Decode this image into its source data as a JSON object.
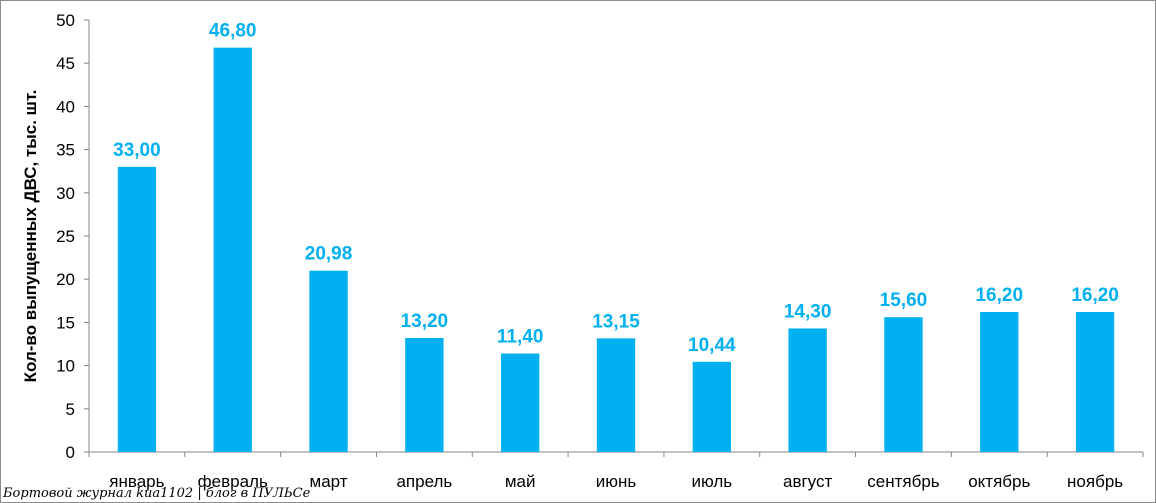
{
  "chart_data": {
    "type": "bar",
    "title": "",
    "xlabel": "",
    "ylabel": "Кол-во выпущенных ДВС, тыс. шт.",
    "ylim": [
      0,
      50
    ],
    "yticks": [
      0,
      5,
      10,
      15,
      20,
      25,
      30,
      35,
      40,
      45,
      50
    ],
    "grid": false,
    "categories": [
      "январь",
      "февраль",
      "март",
      "апрель",
      "май",
      "июнь",
      "июль",
      "август",
      "сентябрь",
      "октябрь",
      "ноябрь"
    ],
    "values": [
      33.0,
      46.8,
      20.98,
      13.2,
      11.4,
      13.15,
      10.44,
      14.3,
      15.6,
      16.2,
      16.2
    ],
    "data_labels": [
      "33,00",
      "46,80",
      "20,98",
      "13,20",
      "11,40",
      "13,15",
      "10,44",
      "14,30",
      "15,60",
      "16,20",
      "16,20"
    ],
    "bar_color": "#00b0f0",
    "label_color": "#00b0f0"
  },
  "watermark": "Бортовой журнал kua1102 | блог в ПУЛЬСе"
}
